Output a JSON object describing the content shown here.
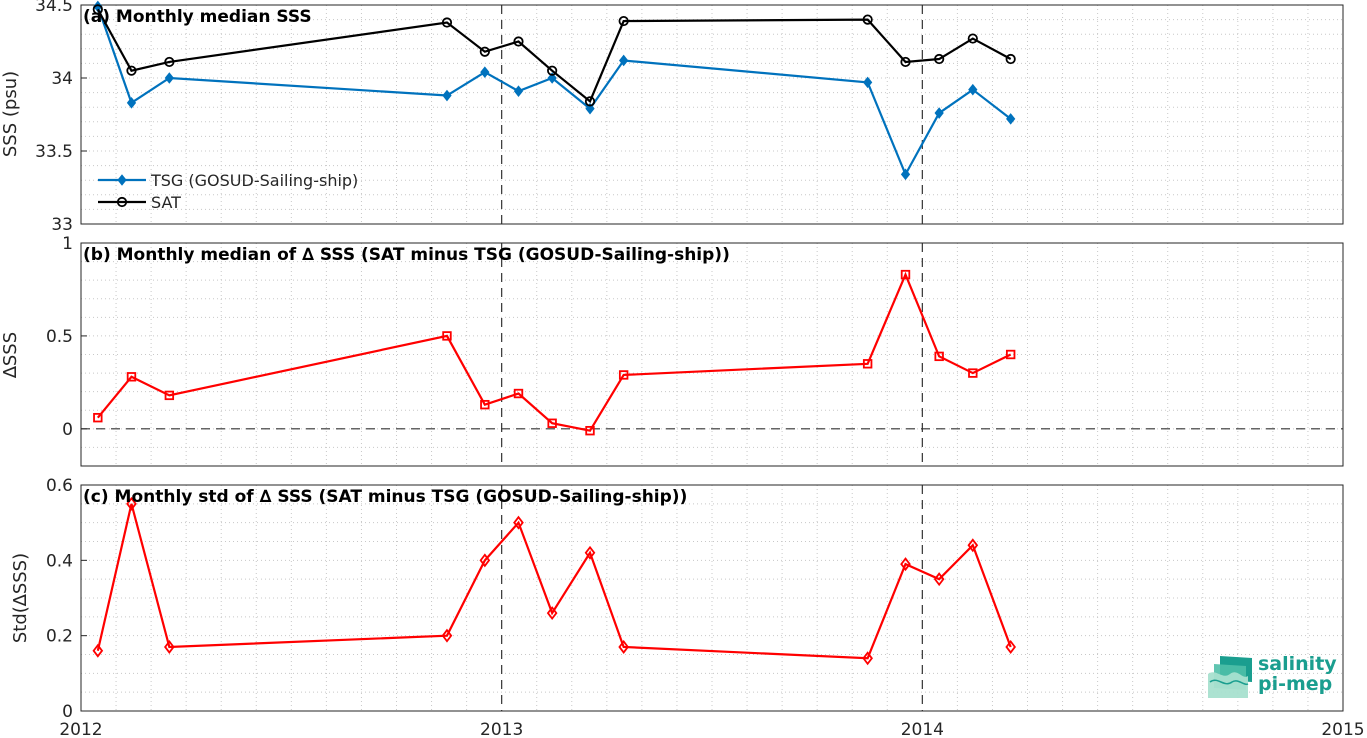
{
  "chart_data": [
    {
      "type": "line",
      "title": "(a) Monthly median SSS",
      "ylabel": "SSS (psu)",
      "xlim": [
        2012,
        2015
      ],
      "ylim": [
        33,
        34.5
      ],
      "yticks": [
        "33",
        "33.5",
        "34",
        "34.5"
      ],
      "grid": true,
      "legend_position": "bottom-left",
      "series": [
        {
          "name": "TSG (GOSUD-Sailing-ship)",
          "color": "#0072BD",
          "marker": "filled-diamond",
          "x": [
            2012.04,
            2012.12,
            2012.21,
            2012.87,
            2012.96,
            2013.04,
            2013.12,
            2013.21,
            2013.29,
            2013.87,
            2013.96,
            2014.04,
            2014.12,
            2014.21
          ],
          "y": [
            34.49,
            33.83,
            34.0,
            33.88,
            34.04,
            33.91,
            34.0,
            33.79,
            34.12,
            33.97,
            33.34,
            33.76,
            33.92,
            33.72
          ]
        },
        {
          "name": "SAT",
          "color": "#000000",
          "marker": "circle",
          "x": [
            2012.04,
            2012.12,
            2012.21,
            2012.87,
            2012.96,
            2013.04,
            2013.12,
            2013.21,
            2013.29,
            2013.87,
            2013.96,
            2014.04,
            2014.12,
            2014.21
          ],
          "y": [
            34.47,
            34.05,
            34.11,
            34.38,
            34.18,
            34.25,
            34.05,
            33.84,
            34.39,
            34.4,
            34.11,
            34.13,
            34.27,
            34.13
          ]
        }
      ]
    },
    {
      "type": "line",
      "title": "(b) Monthly median of ∆ SSS (SAT minus TSG (GOSUD-Sailing-ship))",
      "ylabel": "∆SSS",
      "xlim": [
        2012,
        2015
      ],
      "ylim": [
        -0.2,
        1
      ],
      "yticks": [
        "0",
        "0.5",
        "1"
      ],
      "zero_line": "dashed",
      "grid": true,
      "series": [
        {
          "color": "#FF0000",
          "marker": "square",
          "x": [
            2012.04,
            2012.12,
            2012.21,
            2012.87,
            2012.96,
            2013.04,
            2013.12,
            2013.21,
            2013.29,
            2013.87,
            2013.96,
            2014.04,
            2014.12,
            2014.21
          ],
          "y": [
            0.06,
            0.28,
            0.18,
            0.5,
            0.13,
            0.19,
            0.03,
            -0.01,
            0.29,
            0.35,
            0.83,
            0.39,
            0.3,
            0.4
          ]
        }
      ]
    },
    {
      "type": "line",
      "title": "(c) Monthly std of ∆ SSS (SAT minus TSG (GOSUD-Sailing-ship))",
      "ylabel": "Std(∆SSS)",
      "xlim": [
        2012,
        2015
      ],
      "ylim": [
        0,
        0.6
      ],
      "yticks": [
        "0",
        "0.2",
        "0.4",
        "0.6"
      ],
      "xticks": [
        "2012",
        "2013",
        "2014",
        "2015"
      ],
      "grid": true,
      "series": [
        {
          "color": "#FF0000",
          "marker": "diamond",
          "x": [
            2012.04,
            2012.12,
            2012.21,
            2012.87,
            2012.96,
            2013.04,
            2013.12,
            2013.21,
            2013.29,
            2013.87,
            2013.96,
            2014.04,
            2014.12,
            2014.21
          ],
          "y": [
            0.16,
            0.55,
            0.17,
            0.2,
            0.4,
            0.5,
            0.26,
            0.42,
            0.17,
            0.14,
            0.39,
            0.35,
            0.44,
            0.17
          ]
        }
      ]
    }
  ],
  "logo": {
    "line1": "salinity",
    "line2": "pi-mep",
    "color": "#1a9e8f"
  }
}
